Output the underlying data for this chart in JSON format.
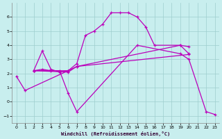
{
  "bg_color": "#c8eeee",
  "grid_color": "#9ecece",
  "line_color": "#bb00bb",
  "xlabel": "Windchill (Refroidissement éolien,°C)",
  "xlim": [
    -0.5,
    23.5
  ],
  "ylim": [
    -1.5,
    7.0
  ],
  "yticks": [
    -1,
    0,
    1,
    2,
    3,
    4,
    5,
    6
  ],
  "xticks": [
    0,
    1,
    2,
    3,
    4,
    5,
    6,
    7,
    8,
    9,
    10,
    11,
    12,
    13,
    14,
    15,
    16,
    17,
    18,
    19,
    20,
    21,
    22,
    23
  ],
  "curve1_x": [
    0,
    1,
    6
  ],
  "curve1_y": [
    1.8,
    0.8,
    2.2
  ],
  "curve2_x": [
    2,
    3,
    4,
    5,
    6,
    7,
    8,
    9,
    10,
    11,
    12,
    13,
    14,
    15,
    16,
    19,
    20
  ],
  "curve2_y": [
    2.2,
    3.6,
    2.3,
    2.1,
    2.2,
    2.7,
    4.7,
    5.0,
    5.5,
    6.3,
    6.3,
    6.3,
    6.0,
    5.3,
    4.0,
    4.0,
    3.4
  ],
  "curve3_x": [
    2,
    3,
    4,
    5,
    6,
    7,
    14,
    19,
    20,
    22,
    23
  ],
  "curve3_y": [
    2.2,
    2.3,
    2.2,
    2.2,
    0.6,
    -0.7,
    4.0,
    3.4,
    3.0,
    -0.7,
    -0.9
  ],
  "curve4_x": [
    2,
    6,
    7,
    19,
    20
  ],
  "curve4_y": [
    2.2,
    2.2,
    2.5,
    4.0,
    3.9
  ],
  "curve5_x": [
    2,
    6,
    7,
    20
  ],
  "curve5_y": [
    2.2,
    2.1,
    2.5,
    3.35
  ]
}
